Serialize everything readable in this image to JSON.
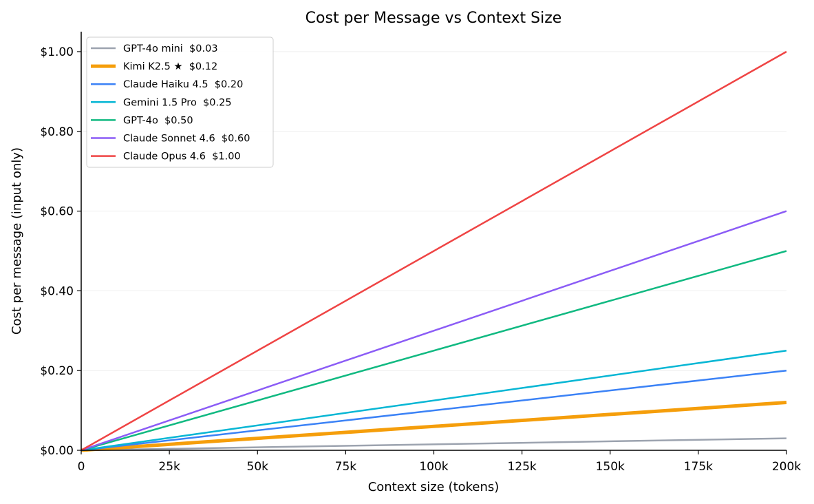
{
  "chart_data": {
    "type": "line",
    "title": "Cost per Message vs Context Size",
    "xlabel": "Context size (tokens)",
    "ylabel": "Cost per message (input only)",
    "xlim": [
      0,
      200000
    ],
    "ylim": [
      0,
      1.05
    ],
    "x_ticks": [
      0,
      25000,
      50000,
      75000,
      100000,
      125000,
      150000,
      175000,
      200000
    ],
    "x_tick_labels": [
      "0",
      "25k",
      "50k",
      "75k",
      "100k",
      "125k",
      "150k",
      "175k",
      "200k"
    ],
    "y_ticks": [
      0,
      0.2,
      0.4,
      0.6,
      0.8,
      1.0
    ],
    "y_tick_labels": [
      "$0.00",
      "$0.20",
      "$0.40",
      "$0.60",
      "$0.80",
      "$1.00"
    ],
    "grid": "y-only, light",
    "legend_position": "upper left",
    "x": [
      0,
      200000
    ],
    "series": [
      {
        "name": "GPT-4o mini",
        "legend_label": "GPT-4o mini  $0.03",
        "values": [
          0,
          0.03
        ],
        "color": "#9ca3af",
        "width": 2
      },
      {
        "name": "Kimi K2.5 ★",
        "legend_label": "Kimi K2.5 ★  $0.12",
        "values": [
          0,
          0.12
        ],
        "color": "#f59e0b",
        "width": 4
      },
      {
        "name": "Claude Haiku 4.5",
        "legend_label": "Claude Haiku 4.5  $0.20",
        "values": [
          0,
          0.2
        ],
        "color": "#3b82f6",
        "width": 2
      },
      {
        "name": "Gemini 1.5 Pro",
        "legend_label": "Gemini 1.5 Pro  $0.25",
        "values": [
          0,
          0.25
        ],
        "color": "#06b6d4",
        "width": 2
      },
      {
        "name": "GPT-4o",
        "legend_label": "GPT-4o  $0.50",
        "values": [
          0,
          0.5
        ],
        "color": "#10b981",
        "width": 2
      },
      {
        "name": "Claude Sonnet 4.6",
        "legend_label": "Claude Sonnet 4.6  $0.60",
        "values": [
          0,
          0.6
        ],
        "color": "#8b5cf6",
        "width": 2
      },
      {
        "name": "Claude Opus 4.6",
        "legend_label": "Claude Opus 4.6  $1.00",
        "values": [
          0,
          1.0
        ],
        "color": "#ef4444",
        "width": 2
      }
    ]
  }
}
